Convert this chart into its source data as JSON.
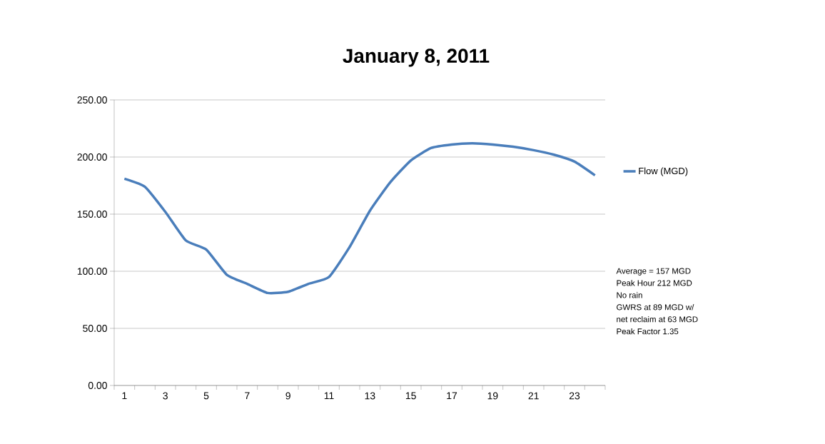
{
  "chart_data": {
    "type": "line",
    "title": "January 8, 2011",
    "categories": [
      "1",
      null,
      "3",
      null,
      "5",
      null,
      "7",
      null,
      "9",
      null,
      "11",
      null,
      "13",
      null,
      "15",
      null,
      "17",
      null,
      "19",
      null,
      "21",
      null,
      "23",
      null
    ],
    "series": [
      {
        "name": "Flow (MGD)",
        "color": "#4a7ebb",
        "values": [
          181,
          174,
          152,
          127,
          119,
          97,
          89,
          81,
          82,
          89,
          95,
          121,
          153,
          178,
          197,
          208,
          211,
          212,
          211,
          209,
          206,
          202,
          196,
          184
        ]
      }
    ],
    "ylim": [
      0,
      250
    ],
    "yticks": [
      {
        "value": 0,
        "label": "0.00"
      },
      {
        "value": 50,
        "label": "50.00"
      },
      {
        "value": 100,
        "label": "100.00"
      },
      {
        "value": 150,
        "label": "150.00"
      },
      {
        "value": 200,
        "label": "200.00"
      },
      {
        "value": 250,
        "label": "250.00"
      }
    ],
    "grid": "y",
    "legend": "right",
    "marker": "none",
    "line_style": "solid",
    "annotations": [
      "Average = 157 MGD",
      "Peak Hour 212 MGD",
      "No rain",
      "GWRS at 89 MGD w/",
      "net reclaim at 63 MGD",
      "Peak Factor 1.35"
    ]
  }
}
